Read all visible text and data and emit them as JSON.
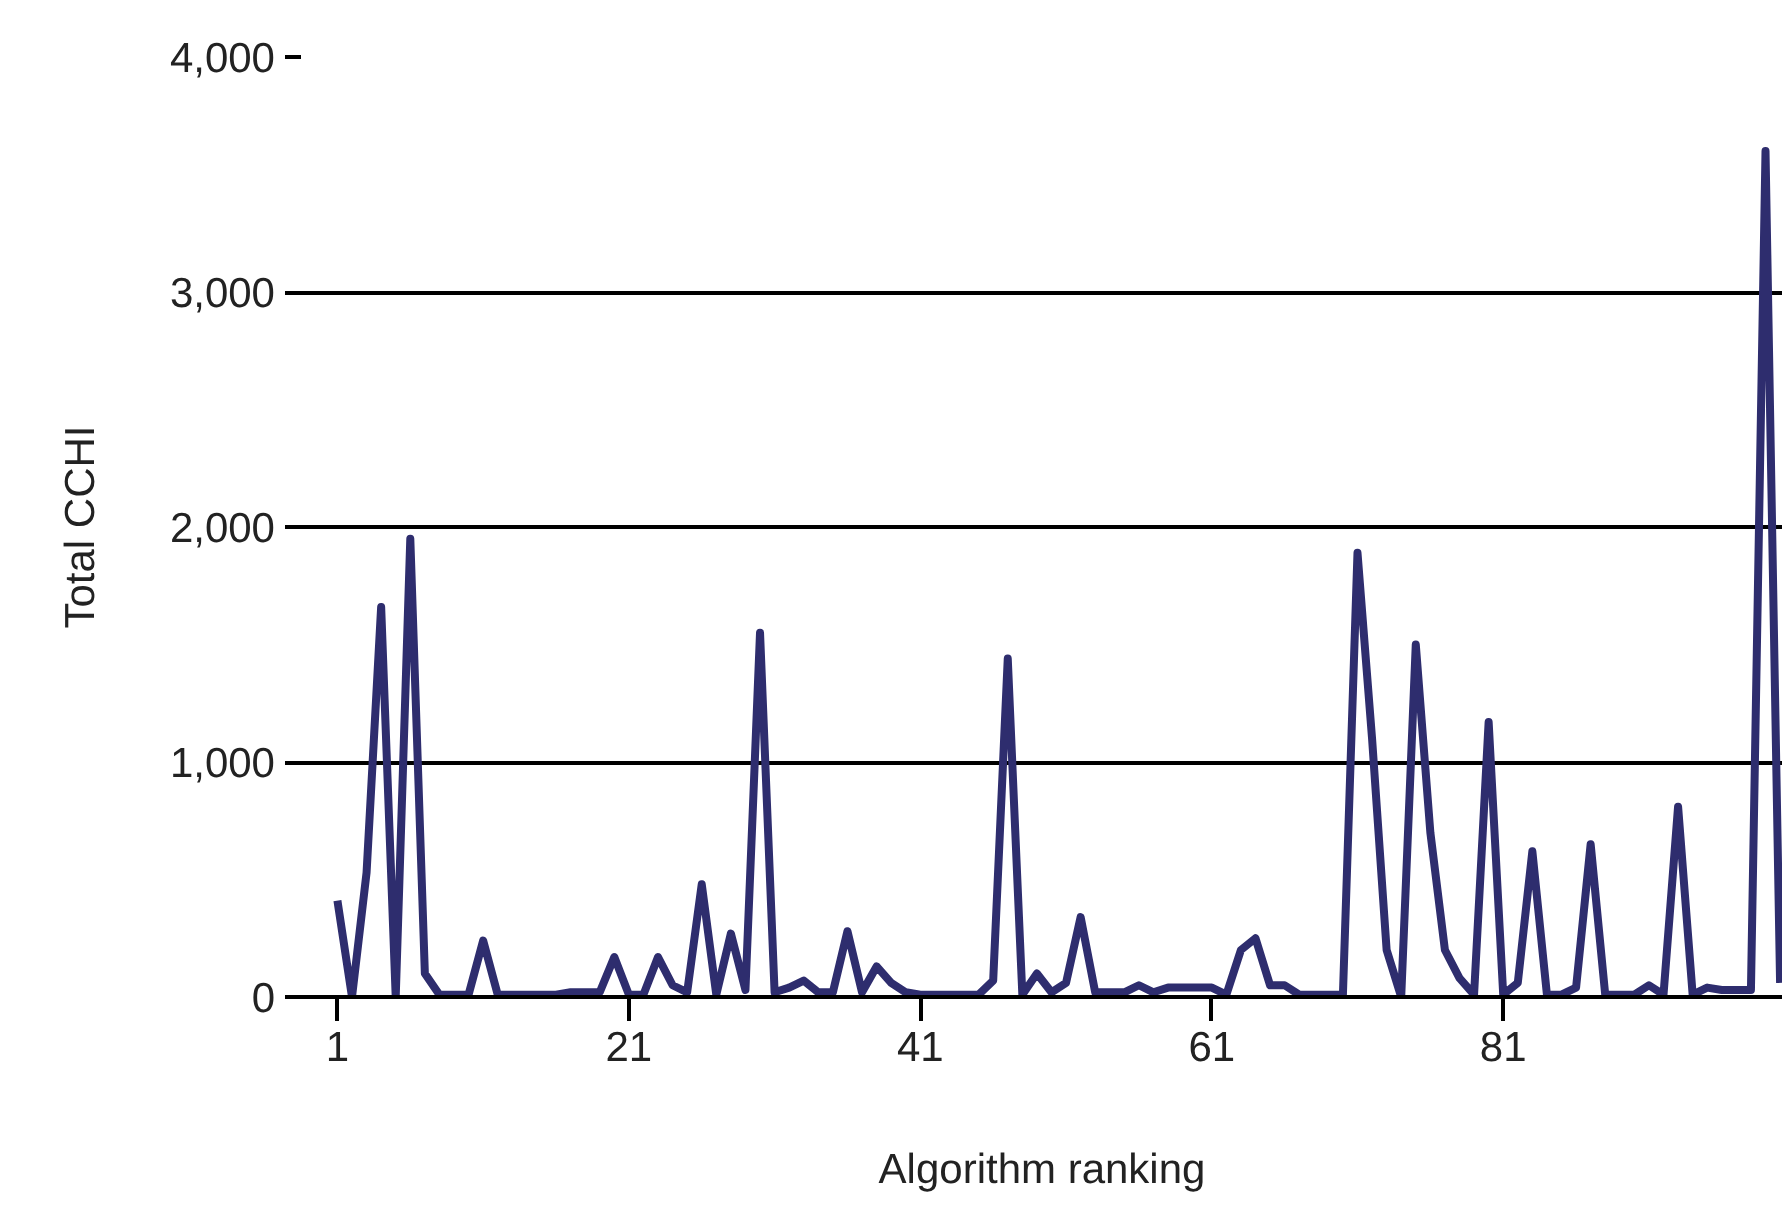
{
  "chart_data": {
    "type": "line",
    "xlabel": "Algorithm ranking",
    "ylabel": "Total CCHI",
    "xlim": [
      -1.5,
      100.2
    ],
    "xticks": [
      1,
      21,
      41,
      61,
      81
    ],
    "ylim": [
      0,
      4000
    ],
    "yticks": [
      0,
      {
        "value": 1000,
        "label": "1,000"
      },
      {
        "value": 2000,
        "label": "2,000"
      },
      {
        "value": 3000,
        "label": "3,000"
      },
      {
        "value": 4000,
        "label": "4,000"
      }
    ],
    "grid": "y",
    "marker": "none",
    "line_style": "solid",
    "series": [
      {
        "color": "#2e2d6e",
        "x": [
          1,
          2,
          3,
          4,
          5,
          6,
          7,
          8,
          9,
          10,
          11,
          12,
          13,
          14,
          15,
          16,
          17,
          18,
          19,
          20,
          21,
          22,
          23,
          24,
          25,
          26,
          27,
          28,
          29,
          30,
          31,
          32,
          33,
          34,
          35,
          36,
          37,
          38,
          39,
          40,
          41,
          42,
          43,
          44,
          45,
          46,
          47,
          48,
          49,
          50,
          51,
          52,
          53,
          54,
          55,
          56,
          57,
          58,
          59,
          60,
          61,
          62,
          63,
          64,
          65,
          66,
          67,
          68,
          69,
          70,
          71,
          72,
          73,
          74,
          75,
          76,
          77,
          78,
          79,
          80,
          81,
          82,
          83,
          84,
          85,
          86,
          87,
          88,
          89,
          90,
          91,
          92,
          93,
          94,
          95,
          96,
          97,
          98,
          99,
          100
        ],
        "values": [
          410,
          0,
          530,
          1660,
          0,
          1950,
          100,
          10,
          10,
          10,
          240,
          10,
          10,
          10,
          10,
          10,
          20,
          20,
          20,
          170,
          10,
          10,
          170,
          50,
          20,
          480,
          10,
          270,
          30,
          1550,
          20,
          40,
          70,
          20,
          20,
          280,
          20,
          130,
          60,
          20,
          10,
          10,
          10,
          10,
          10,
          70,
          1440,
          10,
          100,
          20,
          60,
          340,
          20,
          20,
          20,
          50,
          20,
          40,
          40,
          40,
          40,
          10,
          200,
          250,
          50,
          50,
          10,
          10,
          10,
          10,
          1890,
          1100,
          200,
          0,
          1500,
          700,
          200,
          80,
          10,
          1170,
          10,
          60,
          620,
          10,
          10,
          40,
          650,
          10,
          10,
          10,
          50,
          10,
          810,
          10,
          40,
          30,
          30,
          30,
          3600,
          60
        ]
      }
    ]
  }
}
